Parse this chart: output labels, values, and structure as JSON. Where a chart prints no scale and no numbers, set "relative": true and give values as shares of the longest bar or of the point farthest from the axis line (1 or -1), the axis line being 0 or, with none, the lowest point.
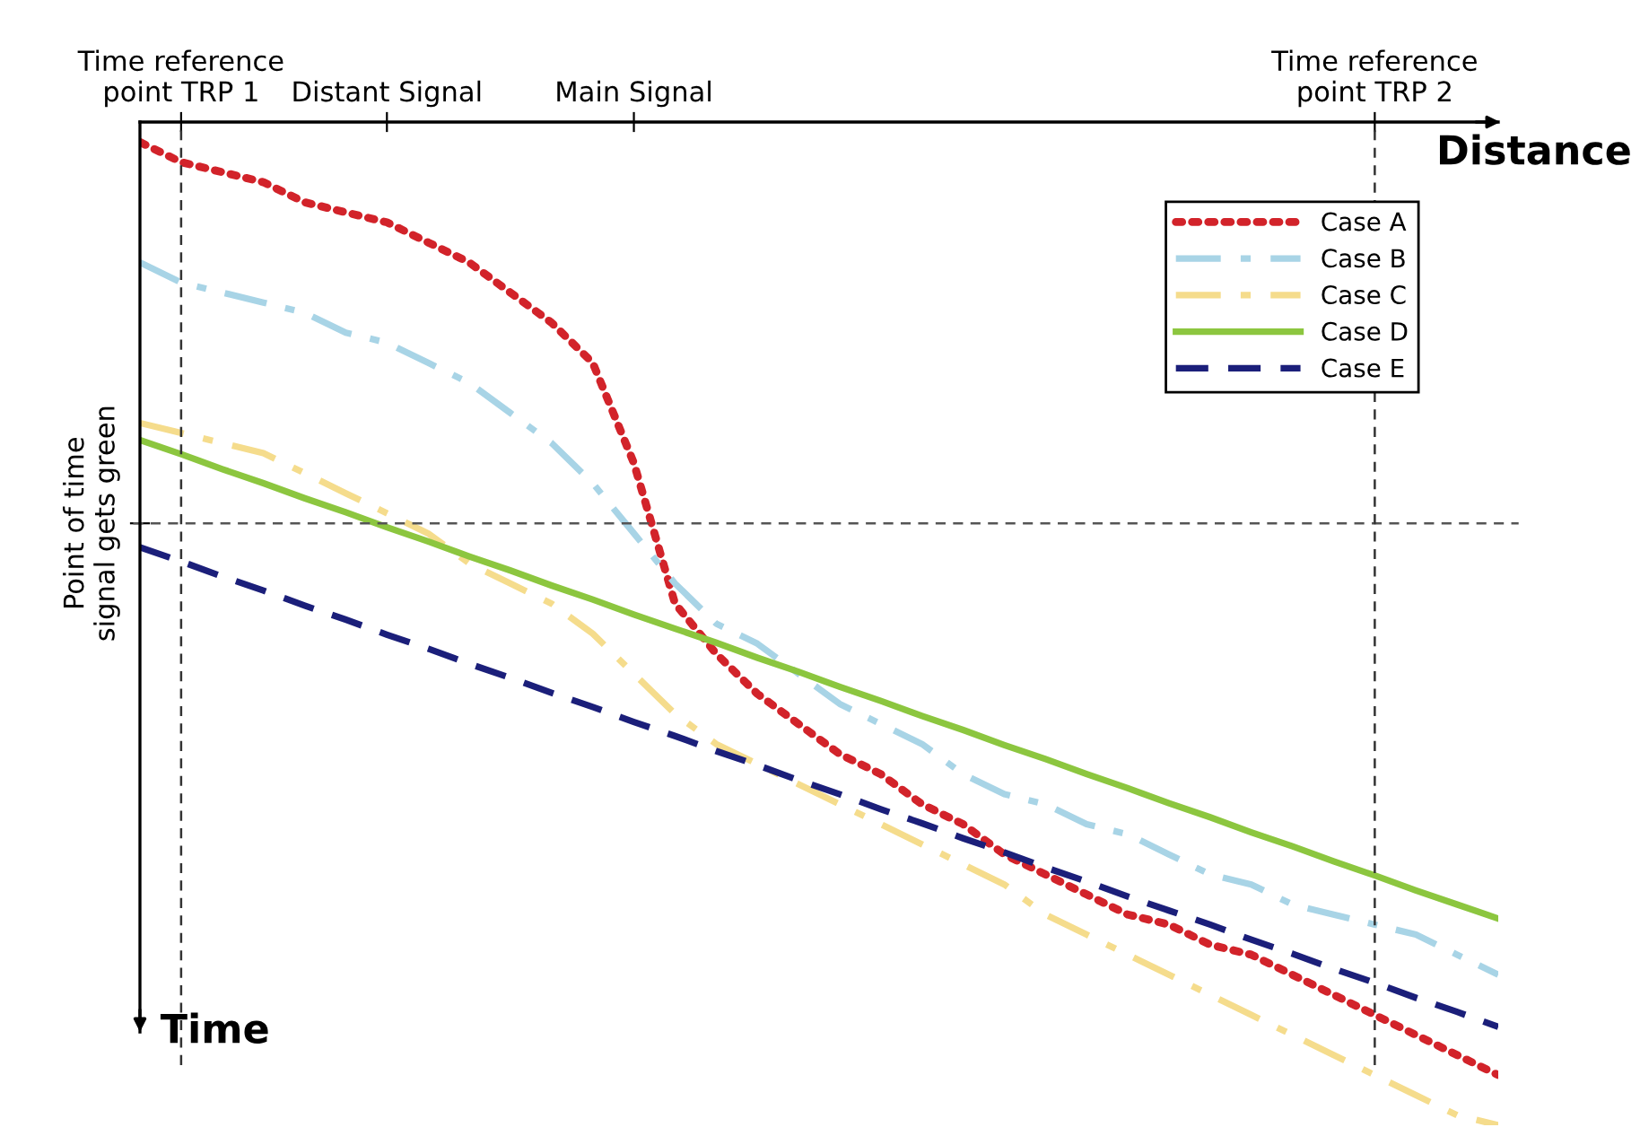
{
  "chart_data": {
    "type": "line",
    "relative": true,
    "xlabel": "Distance",
    "ylabel": "Time",
    "categories": [
      null,
      "Time reference\npoint TRP 1",
      null,
      null,
      null,
      null,
      "Distant Signal",
      null,
      null,
      null,
      null,
      null,
      "Main Signal",
      null,
      null,
      null,
      null,
      null,
      null,
      null,
      null,
      null,
      null,
      null,
      null,
      null,
      null,
      null,
      null,
      null,
      "Time reference\npoint TRP 2",
      null,
      null,
      null
    ],
    "series": [
      {
        "name": "Case A",
        "color": "#d2232a",
        "line_style": "dotted",
        "values": [
          -0.02,
          -0.04,
          -0.05,
          -0.06,
          -0.08,
          -0.09,
          -0.1,
          -0.12,
          -0.14,
          -0.17,
          -0.2,
          -0.24,
          -0.34,
          -0.48,
          -0.53,
          -0.57,
          -0.6,
          -0.63,
          -0.65,
          -0.68,
          -0.7,
          -0.73,
          -0.75,
          -0.77,
          -0.79,
          -0.8,
          -0.82,
          -0.83,
          -0.85,
          -0.87,
          -0.89,
          -0.91,
          -0.93,
          -0.95
        ]
      },
      {
        "name": "Case B",
        "color": "#a8d4e6",
        "line_style": "dashdot",
        "values": [
          -0.14,
          -0.16,
          -0.17,
          -0.18,
          -0.19,
          -0.21,
          -0.22,
          -0.24,
          -0.26,
          -0.29,
          -0.32,
          -0.36,
          -0.41,
          -0.46,
          -0.5,
          -0.52,
          -0.55,
          -0.58,
          -0.6,
          -0.62,
          -0.65,
          -0.67,
          -0.68,
          -0.7,
          -0.71,
          -0.73,
          -0.75,
          -0.76,
          -0.78,
          -0.79,
          -0.8,
          -0.81,
          -0.83,
          -0.85
        ]
      },
      {
        "name": "Case C",
        "color": "#f5dc8c",
        "line_style": "dashdot",
        "values": [
          -0.3,
          -0.31,
          -0.32,
          -0.33,
          -0.35,
          -0.37,
          -0.39,
          -0.41,
          -0.44,
          -0.46,
          -0.48,
          -0.51,
          -0.55,
          -0.59,
          -0.62,
          -0.64,
          -0.66,
          -0.68,
          -0.7,
          -0.72,
          -0.74,
          -0.76,
          -0.79,
          -0.81,
          -0.83,
          -0.85,
          -0.87,
          -0.89,
          -0.91,
          -0.93,
          -0.95,
          -0.97,
          -0.99,
          -1
        ]
      },
      {
        "name": "Case D",
        "color": "#8cc63f",
        "line_style": "solid",
        "values": [
          -0.317,
          -0.331,
          -0.346,
          -0.36,
          -0.375,
          -0.389,
          -0.404,
          -0.418,
          -0.433,
          -0.447,
          -0.462,
          -0.476,
          -0.491,
          -0.505,
          -0.519,
          -0.534,
          -0.548,
          -0.563,
          -0.577,
          -0.592,
          -0.606,
          -0.621,
          -0.635,
          -0.65,
          -0.664,
          -0.679,
          -0.693,
          -0.708,
          -0.722,
          -0.737,
          -0.751,
          -0.766,
          -0.78,
          -0.794
        ]
      },
      {
        "name": "Case E",
        "color": "#1b1f7a",
        "line_style": "dashed",
        "values": [
          -0.424,
          -0.438,
          -0.453,
          -0.467,
          -0.482,
          -0.496,
          -0.511,
          -0.525,
          -0.54,
          -0.554,
          -0.569,
          -0.583,
          -0.598,
          -0.612,
          -0.627,
          -0.641,
          -0.656,
          -0.67,
          -0.685,
          -0.699,
          -0.714,
          -0.728,
          -0.743,
          -0.757,
          -0.772,
          -0.786,
          -0.8,
          -0.815,
          -0.829,
          -0.844,
          -0.858,
          -0.873,
          -0.887,
          -0.902
        ]
      }
    ],
    "ref_lines": [
      {
        "axis": "y",
        "value": -0.4,
        "label": "Point of time\nsignal gets green",
        "color": "#555555",
        "line_style": "dashed"
      },
      {
        "axis": "x",
        "value": "Time reference\npoint TRP 1",
        "color": "#333333",
        "line_style": "dashed"
      },
      {
        "axis": "x",
        "value": "Time reference\npoint TRP 2",
        "color": "#333333",
        "line_style": "dashed"
      }
    ],
    "legend": "top right"
  }
}
